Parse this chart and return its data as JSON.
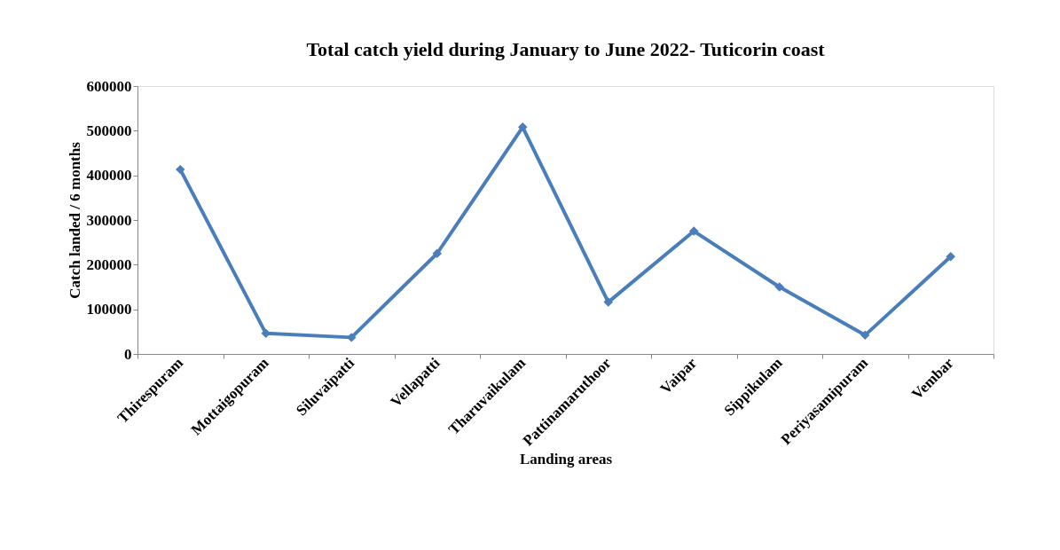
{
  "chart_data": {
    "type": "line",
    "title": "Total catch yield during January to June 2022- Tuticorin coast",
    "xlabel": "Landing areas",
    "ylabel": "Catch landed / 6 months",
    "categories": [
      "Thirespuram",
      "Mottaigopuram",
      "Siluvaipatti",
      "Vellapatti",
      "Tharuvaikulam",
      "Pattinamaruthoor",
      "Vaipar",
      "Sippikulam",
      "Periyasamipuram",
      "Vembar"
    ],
    "series": [
      {
        "color": "#4a7ebb",
        "values": [
          413000,
          46000,
          37000,
          225000,
          508000,
          116000,
          275000,
          150000,
          42000,
          218000
        ]
      }
    ],
    "ylim": [
      0,
      600000
    ],
    "yticks": [
      0,
      100000,
      200000,
      300000,
      400000,
      500000,
      600000
    ],
    "grid": false,
    "marker": "diamond",
    "line_style": "solid"
  }
}
